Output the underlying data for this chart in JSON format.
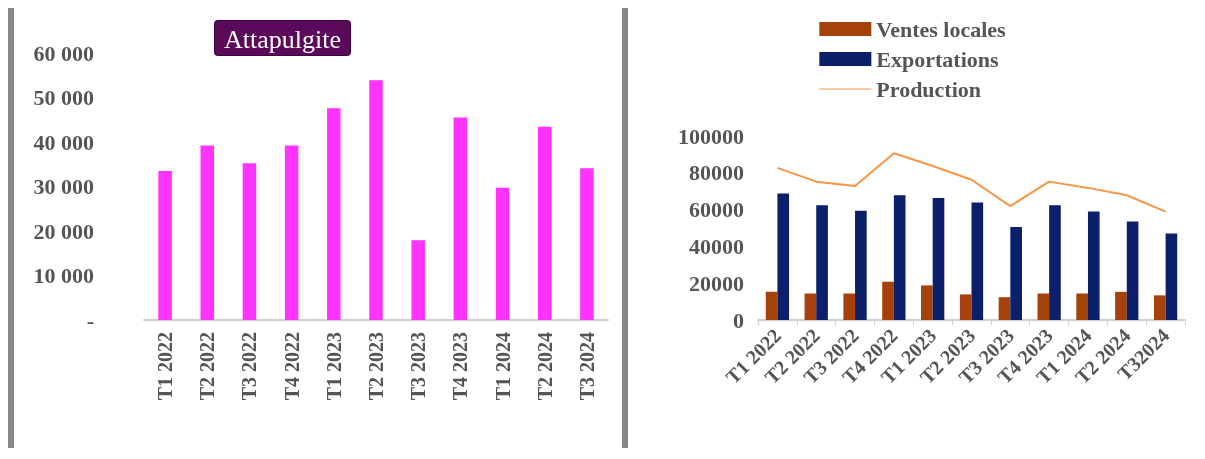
{
  "chart_data": [
    {
      "type": "bar",
      "title": "Attapulgite",
      "categories": [
        "T1 2022",
        "T2 2022",
        "T3 2022",
        "T4 2022",
        "T1 2023",
        "T2 2023",
        "T3 2023",
        "T4 2023",
        "T1 2024",
        "T2 2024",
        "T3 2024"
      ],
      "values": [
        33500,
        39200,
        35200,
        39200,
        47600,
        53900,
        17900,
        45500,
        29700,
        43400,
        34100
      ],
      "color": "#ff33ff",
      "ylim": [
        0,
        60000
      ],
      "yticks": [
        {
          "value": 0,
          "label": "-"
        },
        {
          "value": 10000,
          "label": "10 000"
        },
        {
          "value": 20000,
          "label": "20 000"
        },
        {
          "value": 30000,
          "label": "30 000"
        },
        {
          "value": 40000,
          "label": "40 000"
        },
        {
          "value": 50000,
          "label": "50 000"
        },
        {
          "value": 60000,
          "label": "60 000"
        }
      ],
      "grid": false
    },
    {
      "type": "bar",
      "categories": [
        "T1 2022",
        "T2 2022",
        "T3 2022",
        "T4 2022",
        "T1 2023",
        "T2 2023",
        "T3 2023",
        "T4 2023",
        "T1 2024",
        "T2 2024",
        "T32024"
      ],
      "series": [
        {
          "name": "Ventes locales",
          "color": "#a5410a",
          "values": [
            15300,
            14400,
            14400,
            20800,
            18800,
            13900,
            12400,
            14400,
            14400,
            15300,
            13400
          ]
        },
        {
          "name": "Exportations",
          "color": "#0c1f6b",
          "values": [
            68800,
            62400,
            59400,
            67800,
            66300,
            63900,
            50500,
            62400,
            58900,
            53500,
            47000
          ]
        },
        {
          "name": "Production",
          "type": "line",
          "color": "#f79646",
          "values": [
            82700,
            75200,
            72800,
            90600,
            83700,
            76200,
            61900,
            75200,
            71800,
            67800,
            58900
          ]
        }
      ],
      "ylim": [
        0,
        100000
      ],
      "yticks": [
        0,
        20000,
        40000,
        60000,
        80000,
        100000
      ],
      "grid": false,
      "legend": "top",
      "marker": "none"
    }
  ]
}
